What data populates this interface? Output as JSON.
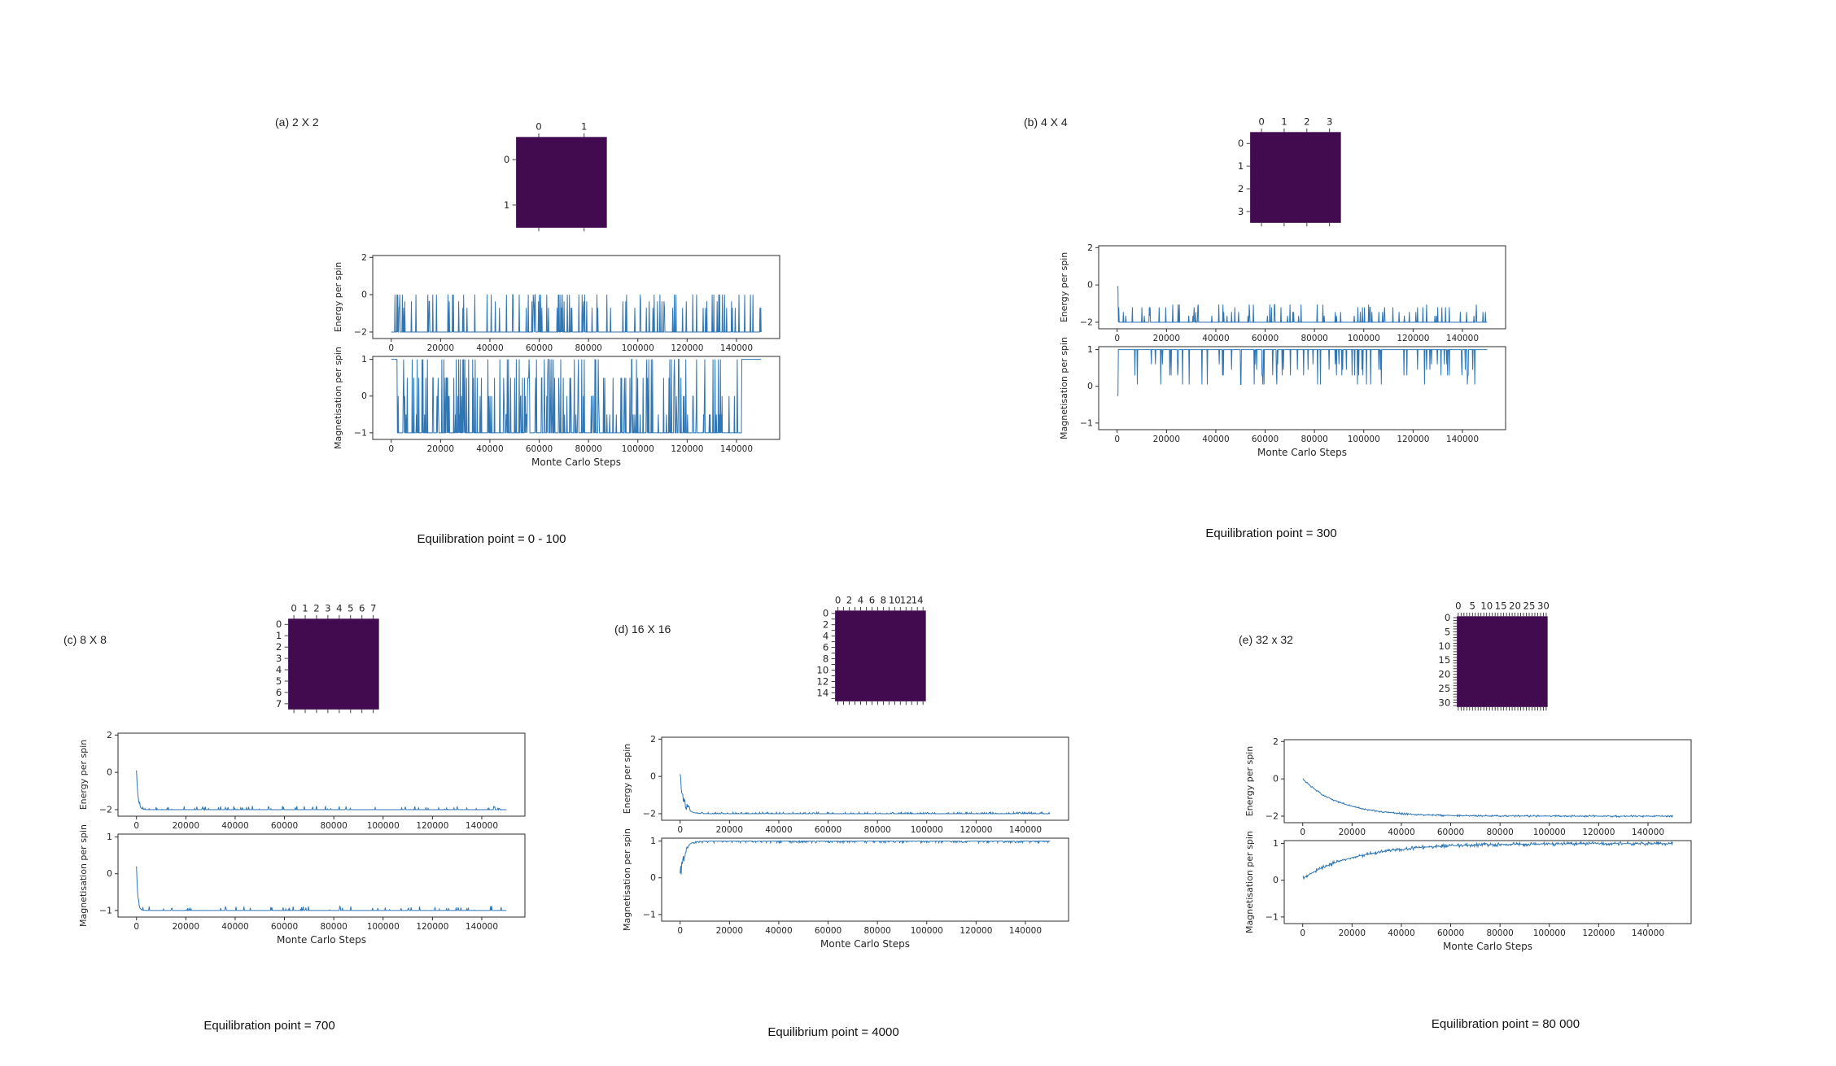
{
  "colors": {
    "background": "#ffffff",
    "heatmap_fill": "#420b50",
    "line": "#2f76b5",
    "axis": "#2b2b2b",
    "text": "#1a1a1a"
  },
  "chart_data": [
    {
      "panel": "a",
      "type": "line",
      "label": "(a) 2 X 2",
      "caption": "Equilibration point = 0 - 100",
      "heatmap": {
        "n": 2,
        "top_labels": [
          "0",
          "1"
        ],
        "left_labels": [
          "0",
          "1"
        ]
      },
      "x": {
        "label": "Monte Carlo Steps",
        "data_max": 150000,
        "ticks": [
          0,
          20000,
          40000,
          60000,
          80000,
          100000,
          120000,
          140000
        ]
      },
      "subplots": [
        {
          "ylabel": "Energy per spin",
          "ylim": [
            -2.35,
            2.1
          ],
          "yticks": [
            2,
            0,
            -2
          ],
          "series": {
            "gen": "spikes",
            "baseline": -2,
            "spike_values": [
              0,
              0,
              -0.7,
              -0.35
            ],
            "density": 0.12,
            "seed": 101
          }
        },
        {
          "ylabel": "Magnetisation per spin",
          "ylim": [
            -1.18,
            1.08
          ],
          "yticks": [
            1,
            0,
            -1
          ],
          "series": {
            "gen": "spikes",
            "baseline": -1,
            "spike_values": [
              1,
              0.5,
              0,
              -0.5,
              1
            ],
            "density": 0.2,
            "seed": 102,
            "plateaus": [
              [
                0,
                2500,
                1
              ],
              [
                142000,
                150000,
                1
              ]
            ]
          }
        }
      ]
    },
    {
      "panel": "b",
      "type": "line",
      "label": "(b) 4 X 4",
      "caption": "Equilibration point = 300",
      "heatmap": {
        "n": 4,
        "top_labels": [
          "0",
          "1",
          "2",
          "3"
        ],
        "left_labels": [
          "0",
          "1",
          "2",
          "3"
        ]
      },
      "x": {
        "label": "Monte Carlo Steps",
        "data_max": 150000,
        "ticks": [
          0,
          20000,
          40000,
          60000,
          80000,
          100000,
          120000,
          140000
        ]
      },
      "subplots": [
        {
          "ylabel": "Energy per spin",
          "ylim": [
            -2.35,
            2.1
          ],
          "yticks": [
            2,
            0,
            -2
          ],
          "series": {
            "gen": "spikes",
            "baseline": -2,
            "spike_values": [
              -1.2,
              -1.45,
              -1.65,
              -1.05
            ],
            "density": 0.09,
            "seed": 201,
            "plateaus": [
              [
                0,
                500,
                -0.1
              ]
            ]
          }
        },
        {
          "ylabel": "Magnetisation per spin",
          "ylim": [
            -1.18,
            1.08
          ],
          "yticks": [
            1,
            0,
            -1
          ],
          "series": {
            "gen": "spikes",
            "baseline": 1,
            "spike_values": [
              0.6,
              0.45,
              0.3,
              0.05
            ],
            "density": 0.09,
            "seed": 202,
            "plateaus": [
              [
                0,
                500,
                -0.25
              ]
            ]
          }
        }
      ]
    },
    {
      "panel": "c",
      "type": "line",
      "label": "(c) 8 X 8",
      "caption": "Equilibration point = 700",
      "heatmap": {
        "n": 8,
        "top_labels": [
          "0",
          "1",
          "2",
          "3",
          "4",
          "5",
          "6",
          "7"
        ],
        "left_labels": [
          "0",
          "1",
          "2",
          "3",
          "4",
          "5",
          "6",
          "7"
        ]
      },
      "x": {
        "label": "Monte Carlo Steps",
        "data_max": 150000,
        "ticks": [
          0,
          20000,
          40000,
          60000,
          80000,
          100000,
          120000,
          140000
        ]
      },
      "subplots": [
        {
          "ylabel": "Energy per spin",
          "ylim": [
            -2.35,
            2.1
          ],
          "yticks": [
            2,
            0,
            -2
          ],
          "series": {
            "gen": "relax",
            "start": 0.1,
            "end": -2,
            "tau": 600,
            "seed": 301,
            "noise": {
              "prob": 0.12,
              "amp": 0.2,
              "dir": 1
            }
          }
        },
        {
          "ylabel": "Magnetisation per spin",
          "ylim": [
            -1.18,
            1.08
          ],
          "yticks": [
            1,
            0,
            -1
          ],
          "series": {
            "gen": "relax",
            "start": 0.2,
            "end": -1,
            "tau": 500,
            "seed": 302,
            "noise": {
              "prob": 0.1,
              "amp": 0.12,
              "dir": 1
            }
          }
        }
      ]
    },
    {
      "panel": "d",
      "type": "line",
      "label": "(d) 16 X 16",
      "caption": "Equilibrium point = 4000",
      "heatmap": {
        "n": 16,
        "top_labels": [
          "0",
          "2",
          "4",
          "6",
          "8",
          "10",
          "12",
          "14"
        ],
        "left_labels": [
          "0",
          "2",
          "4",
          "6",
          "8",
          "10",
          "12",
          "14"
        ]
      },
      "x": {
        "label": "Monte Carlo Steps",
        "data_max": 150000,
        "ticks": [
          0,
          20000,
          40000,
          60000,
          80000,
          100000,
          120000,
          140000
        ]
      },
      "subplots": [
        {
          "ylabel": "Energy per spin",
          "ylim": [
            -2.35,
            2.1
          ],
          "yticks": [
            2,
            0,
            -2
          ],
          "series": {
            "gen": "relax",
            "start": 0,
            "end": -2,
            "tau": 1600,
            "seed": 401,
            "noise": {
              "prob": 0.3,
              "amp": 0.08,
              "dir": 1
            },
            "early_noise": {
              "until": 4000,
              "amp": 0.5
            }
          }
        },
        {
          "ylabel": "Magnetisation per spin",
          "ylim": [
            -1.18,
            1.08
          ],
          "yticks": [
            1,
            0,
            -1
          ],
          "series": {
            "gen": "relax",
            "start": 0,
            "end": 1,
            "tau": 1600,
            "seed": 402,
            "noise": {
              "prob": 0.3,
              "amp": 0.05,
              "dir": -1
            },
            "early_noise": {
              "until": 3000,
              "amp": 0.4
            }
          }
        }
      ]
    },
    {
      "panel": "e",
      "type": "line",
      "label": "(e) 32 x 32",
      "caption": "Equilibration point = 80 000",
      "heatmap": {
        "n": 32,
        "top_labels": [
          "0",
          "5",
          "10",
          "15",
          "20",
          "25",
          "30"
        ],
        "left_labels": [
          "0",
          "5",
          "10",
          "15",
          "20",
          "25",
          "30"
        ]
      },
      "x": {
        "label": "Monte Carlo Steps",
        "data_max": 150000,
        "ticks": [
          0,
          20000,
          40000,
          60000,
          80000,
          100000,
          120000,
          140000
        ]
      },
      "subplots": [
        {
          "ylabel": "Energy per spin",
          "ylim": [
            -2.35,
            2.1
          ],
          "yticks": [
            2,
            0,
            -2
          ],
          "series": {
            "gen": "relax",
            "start": 0,
            "end": -2,
            "tau": 15000,
            "seed": 501,
            "noise": {
              "prob": 0.6,
              "amp": 0.05,
              "dir": 0
            }
          }
        },
        {
          "ylabel": "Magnetisation per spin",
          "ylim": [
            -1.18,
            1.08
          ],
          "yticks": [
            1,
            0,
            -1
          ],
          "series": {
            "gen": "relax",
            "start": 0.05,
            "end": 1,
            "tau": 22000,
            "seed": 502,
            "noise": {
              "prob": 0.6,
              "amp": 0.05,
              "dir": 0
            }
          }
        }
      ]
    }
  ]
}
